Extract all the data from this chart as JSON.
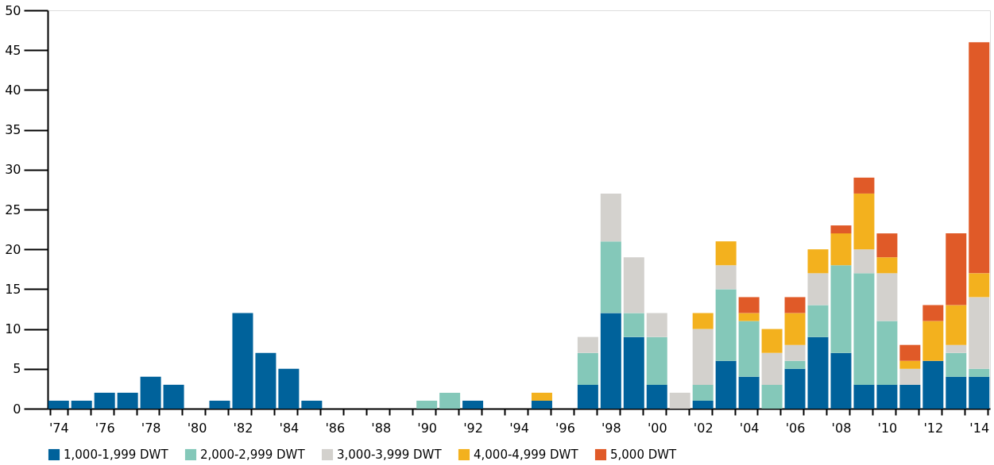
{
  "chart_data": {
    "type": "bar",
    "stacked": true,
    "categories": [
      "'74",
      null,
      "'76",
      null,
      "'78",
      null,
      "'80",
      null,
      "'82",
      null,
      "'84",
      null,
      "'86",
      null,
      "'88",
      null,
      "'90",
      null,
      "'92",
      null,
      "'94",
      null,
      "'96",
      null,
      "'98",
      null,
      "'00",
      null,
      "'02",
      null,
      "'04",
      null,
      "'06",
      null,
      "'08",
      null,
      "'10",
      null,
      "'12",
      null,
      "'14"
    ],
    "series": [
      {
        "name": "1,000-1,999 DWT",
        "color": "#00629b",
        "values": [
          1,
          1,
          2,
          2,
          4,
          3,
          0,
          1,
          12,
          7,
          5,
          1,
          0,
          0,
          0,
          0,
          0,
          0,
          1,
          0,
          0,
          1,
          0,
          3,
          12,
          9,
          3,
          0,
          1,
          6,
          4,
          0,
          5,
          9,
          7,
          3,
          3,
          3,
          6,
          4,
          4
        ]
      },
      {
        "name": "2,000-2,999 DWT",
        "color": "#84c8b9",
        "values": [
          0,
          0,
          0,
          0,
          0,
          0,
          0,
          0,
          0,
          0,
          0,
          0,
          0,
          0,
          0,
          0,
          1,
          2,
          0,
          0,
          0,
          0,
          0,
          4,
          9,
          3,
          6,
          0,
          2,
          9,
          7,
          3,
          1,
          4,
          11,
          14,
          8,
          0,
          0,
          3,
          1
        ]
      },
      {
        "name": "3,000-3,999 DWT",
        "color": "#d3d1cd",
        "values": [
          0,
          0,
          0,
          0,
          0,
          0,
          0,
          0,
          0,
          0,
          0,
          0,
          0,
          0,
          0,
          0,
          0,
          0,
          0,
          0,
          0,
          0,
          0,
          2,
          6,
          7,
          3,
          2,
          7,
          3,
          0,
          4,
          2,
          4,
          0,
          3,
          6,
          2,
          0,
          1,
          9
        ]
      },
      {
        "name": "4,000-4,999 DWT",
        "color": "#f3b11e",
        "values": [
          0,
          0,
          0,
          0,
          0,
          0,
          0,
          0,
          0,
          0,
          0,
          0,
          0,
          0,
          0,
          0,
          0,
          0,
          0,
          0,
          0,
          1,
          0,
          0,
          0,
          0,
          0,
          0,
          2,
          3,
          1,
          3,
          4,
          3,
          4,
          7,
          2,
          1,
          5,
          5,
          3
        ]
      },
      {
        "name": "5,000 DWT",
        "color": "#e05a28",
        "values": [
          0,
          0,
          0,
          0,
          0,
          0,
          0,
          0,
          0,
          0,
          0,
          0,
          0,
          0,
          0,
          0,
          0,
          0,
          0,
          0,
          0,
          0,
          0,
          0,
          0,
          0,
          0,
          0,
          0,
          0,
          2,
          0,
          2,
          0,
          1,
          2,
          3,
          2,
          2,
          9,
          29
        ]
      }
    ],
    "ylim": [
      0,
      50
    ],
    "yticks": [
      0,
      5,
      10,
      15,
      20,
      25,
      30,
      35,
      40,
      45,
      50
    ],
    "grid": false,
    "legend": "bottom"
  }
}
